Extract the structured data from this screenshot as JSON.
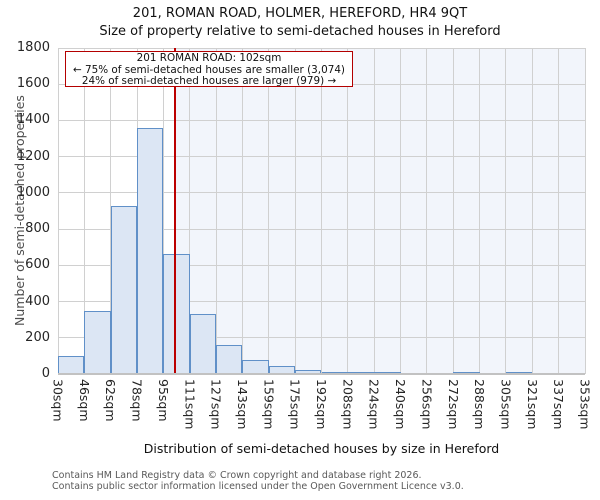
{
  "header": {
    "title": "201, ROMAN ROAD, HOLMER, HEREFORD, HR4 9QT",
    "subtitle": "Size of property relative to semi-detached houses in Hereford"
  },
  "annotation": {
    "line1": "201 ROMAN ROAD: 102sqm",
    "line2": "← 75% of semi-detached houses are smaller (3,074)",
    "line3": "24% of semi-detached houses are larger (979) →"
  },
  "footer": {
    "line1": "Contains HM Land Registry data © Crown copyright and database right 2026.",
    "line2": "Contains public sector information licensed under the Open Government Licence v3.0."
  },
  "chart_data": {
    "type": "bar",
    "title": "201, ROMAN ROAD, HOLMER, HEREFORD, HR4 9QT",
    "subtitle": "Size of property relative to semi-detached houses in Hereford",
    "xlabel": "Distribution of semi-detached houses by size in Hereford",
    "ylabel": "Number of semi-detached properties",
    "bin_edges": [
      30,
      46,
      62,
      78,
      95,
      111,
      127,
      143,
      159,
      175,
      192,
      208,
      224,
      240,
      256,
      272,
      288,
      305,
      321,
      337,
      353
    ],
    "bin_labels": [
      "30sqm",
      "46sqm",
      "62sqm",
      "78sqm",
      "95sqm",
      "111sqm",
      "127sqm",
      "143sqm",
      "159sqm",
      "175sqm",
      "192sqm",
      "208sqm",
      "224sqm",
      "240sqm",
      "256sqm",
      "272sqm",
      "288sqm",
      "305sqm",
      "321sqm",
      "337sqm",
      "353sqm"
    ],
    "values": [
      100,
      350,
      925,
      1360,
      665,
      330,
      160,
      75,
      45,
      20,
      10,
      5,
      10,
      0,
      0,
      5,
      0,
      5,
      0,
      0
    ],
    "ylim": [
      0,
      1800
    ],
    "yticks": [
      0,
      200,
      400,
      600,
      800,
      1000,
      1200,
      1400,
      1600,
      1800
    ],
    "grid": true,
    "legend": false,
    "marker_value": 102,
    "marker_label": "201 ROMAN ROAD: 102sqm",
    "colors": {
      "bar_fill": "#dce6f4",
      "bar_edge": "#6090c8",
      "marker_line": "#bb0000",
      "shade_right_of_marker": "#f2f5fb",
      "grid": "#d0d0d0",
      "annotation_border": "#b40000"
    }
  }
}
